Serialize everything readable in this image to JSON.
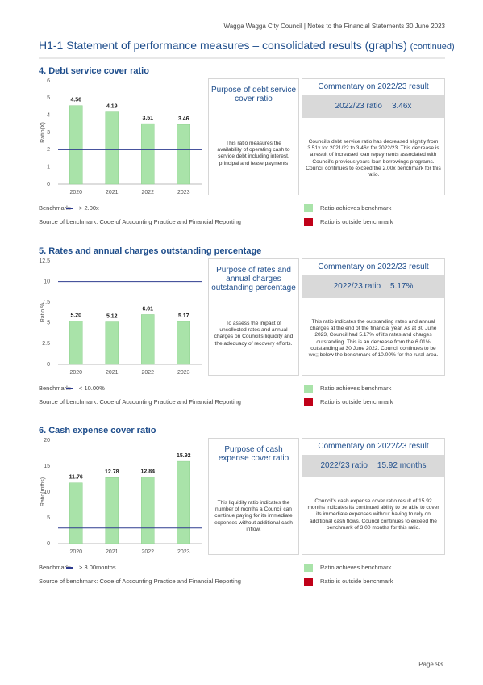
{
  "header": {
    "org_line": "Wagga Wagga City Council | Notes to the Financial Statements 30 June 2023",
    "title": "H1-1  Statement of performance measures – consolidated results (graphs)",
    "title_suffix": "(continued)"
  },
  "chart_data": [
    {
      "type": "bar",
      "title": "4. Debt service cover ratio",
      "y_label": "Ratio(X)",
      "categories": [
        "2020",
        "2021",
        "2022",
        "2023"
      ],
      "values": [
        4.56,
        4.19,
        3.51,
        3.46
      ],
      "color": "#a9e3a9",
      "benchmark": 2,
      "benchmark_color": "#2e3b8f",
      "ylim": [
        0,
        6
      ],
      "yticks": [
        0,
        1,
        2,
        3,
        4,
        5,
        6
      ]
    },
    {
      "type": "bar",
      "title": "5. Rates and annual charges outstanding percentage",
      "y_label": "Ratio %",
      "categories": [
        "2020",
        "2021",
        "2022",
        "2023"
      ],
      "values": [
        5.2,
        5.12,
        6.01,
        5.17
      ],
      "value_labels": [
        "5.20",
        "5.12",
        "6.01",
        "5.17"
      ],
      "color": "#a9e3a9",
      "benchmark": 10,
      "benchmark_color": "#2e3b8f",
      "ylim": [
        0,
        12.5
      ],
      "yticks": [
        0,
        2.5,
        5,
        7.5,
        10,
        12.5
      ]
    },
    {
      "type": "bar",
      "title": "6. Cash expense cover ratio",
      "y_label": "Ratio(mths)",
      "categories": [
        "2020",
        "2021",
        "2022",
        "2023"
      ],
      "values": [
        11.76,
        12.78,
        12.84,
        15.92
      ],
      "color": "#a9e3a9",
      "benchmark": 3,
      "benchmark_color": "#2e3b8f",
      "ylim": [
        0,
        20
      ],
      "yticks": [
        0,
        5,
        10,
        15,
        20
      ]
    }
  ],
  "sections": [
    {
      "purpose_title": "Purpose of debt service cover ratio",
      "purpose_text": "This ratio measures the availability of operating cash to service debt including interest, principal and lease payments",
      "commentary_title": "Commentary on 2022/23 result",
      "result_label": "2022/23 ratio",
      "result_value": "3.46x",
      "commentary_text": "Council's debt service ratio has decreased slightly from 3.51x for 2021/22 to 3.46x for 2022/23. This decrease is a result of increased loan repayments associated with Council's previous years loan borrowings programs. Council continues to exceed the 2.00x benchmark for this ratio.",
      "benchmark_label": "Benchmark:",
      "benchmark_value": "> 2.00x",
      "source": "Source of benchmark: Code of Accounting Practice and Financial Reporting",
      "legend_achieves": "Ratio achieves benchmark",
      "legend_outside": "Ratio is outside benchmark",
      "achieves_color": "#a9e3a9",
      "outside_color": "#c00018"
    },
    {
      "purpose_title": "Purpose of rates and annual charges outstanding percentage",
      "purpose_text": "To assess the impact of uncollected rates and annual charges on Council's liquidity and the adequacy of recovery efforts.",
      "commentary_title": "Commentary on 2022/23 result",
      "result_label": "2022/23 ratio",
      "result_value": "5.17%",
      "commentary_text": "This ratio indicates the outstanding rates and annual charges at the end of the financial year. As at 30 June 2023, Council had 5.17% of it's rates and charges outstanding. This is an decrease from the 6.01% outstanding at 30 June 2022. Council continues to be we;; below the benchmark of 10.00% for the rural area.",
      "benchmark_label": "Benchmark:",
      "benchmark_value": "< 10.00%",
      "source": "Source of benchmark: Code of Accounting Practice and Financial Reporting",
      "legend_achieves": "Ratio achieves benchmark",
      "legend_outside": "Ratio is outside benchmark",
      "achieves_color": "#a9e3a9",
      "outside_color": "#c00018"
    },
    {
      "purpose_title": "Purpose of cash expense cover ratio",
      "purpose_text": "This liquidity ratio indicates the number of months a Council can continue paying for its immediate expenses without additional cash inflow.",
      "commentary_title": "Commentary on 2022/23 result",
      "result_label": "2022/23 ratio",
      "result_value": "15.92 months",
      "commentary_text": "Council's cash expense cover ratio result of 15.92 months indicates its continued ability to be able to cover its immediate expenses without having to rely on additional cash flows. Council continues to exceed the benchmark of 3.00 months for this ratio.",
      "benchmark_label": "Benchmark:",
      "benchmark_value": "> 3.00months",
      "source": "Source of benchmark: Code of Accounting Practice and Financial Reporting",
      "legend_achieves": "Ratio achieves benchmark",
      "legend_outside": "Ratio is outside benchmark",
      "achieves_color": "#a9e3a9",
      "outside_color": "#c00018"
    }
  ],
  "footer": {
    "page": "Page 93"
  }
}
